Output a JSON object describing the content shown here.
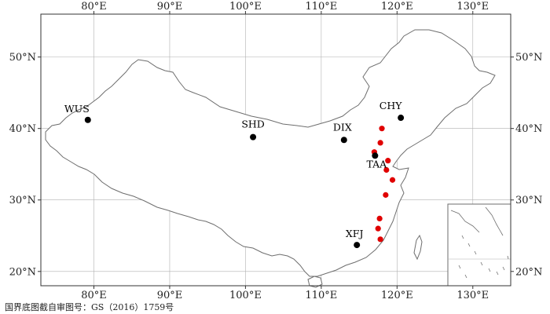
{
  "map": {
    "lon_range": [
      73,
      135
    ],
    "lat_range": [
      18,
      56
    ],
    "x_ticks": [
      {
        "value": 80,
        "label": "80°E"
      },
      {
        "value": 90,
        "label": "90°E"
      },
      {
        "value": 100,
        "label": "100°E"
      },
      {
        "value": 110,
        "label": "110°E"
      },
      {
        "value": 120,
        "label": "120°E"
      },
      {
        "value": 130,
        "label": "130°E"
      }
    ],
    "y_ticks": [
      {
        "value": 20,
        "label": "20°N"
      },
      {
        "value": 30,
        "label": "30°N"
      },
      {
        "value": 40,
        "label": "40°N"
      },
      {
        "value": 50,
        "label": "50°N"
      }
    ],
    "grid": true,
    "inset": "bottom-right",
    "colors": {
      "background_station": "#000000",
      "site": "#e00000",
      "grid": "#b0b0b0",
      "border": "#6e6e6e"
    },
    "background_stations": [
      {
        "name": "WUS",
        "lon": 79.2,
        "lat": 41.2
      },
      {
        "name": "SHD",
        "lon": 101.0,
        "lat": 38.8
      },
      {
        "name": "DIX",
        "lon": 113.0,
        "lat": 38.4
      },
      {
        "name": "CHY",
        "lon": 120.5,
        "lat": 41.5
      },
      {
        "name": "TAA",
        "lon": 117.1,
        "lat": 36.2
      },
      {
        "name": "XFJ",
        "lon": 114.7,
        "lat": 23.7
      }
    ],
    "sites": [
      {
        "lon": 118.0,
        "lat": 40.0
      },
      {
        "lon": 117.8,
        "lat": 38.0
      },
      {
        "lon": 117.0,
        "lat": 36.7
      },
      {
        "lon": 118.8,
        "lat": 35.5
      },
      {
        "lon": 118.6,
        "lat": 34.2
      },
      {
        "lon": 119.4,
        "lat": 32.8
      },
      {
        "lon": 118.5,
        "lat": 30.7
      },
      {
        "lon": 117.7,
        "lat": 27.4
      },
      {
        "lon": 117.5,
        "lat": 26.0
      },
      {
        "lon": 117.8,
        "lat": 24.5
      }
    ],
    "note": "国界底图截自审图号：GS（2016）1759号"
  }
}
